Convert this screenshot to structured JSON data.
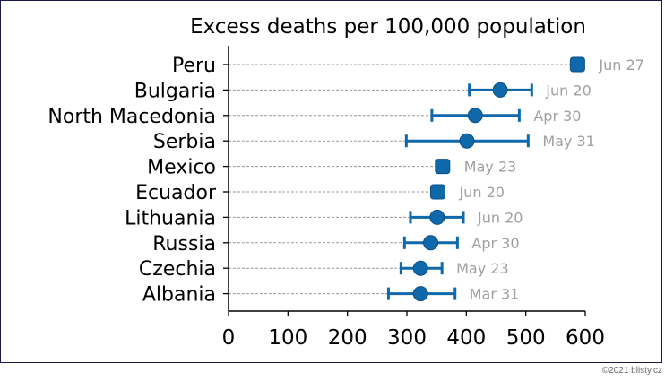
{
  "chart_data": {
    "type": "scatter",
    "title": "Excess deaths per 100,000 population",
    "xlabel": "",
    "ylabel": "",
    "xlim": [
      0,
      600
    ],
    "xticks": [
      0,
      100,
      200,
      300,
      400,
      500,
      600
    ],
    "grid": "horizontal dashed guide lines",
    "series_color": "#0f68aa",
    "date_label_color": "#a0a0a0",
    "rows": [
      {
        "country": "Peru",
        "value": 587,
        "low": 582,
        "high": 592,
        "date": "Jun 27"
      },
      {
        "country": "Bulgaria",
        "value": 457,
        "low": 405,
        "high": 510,
        "date": "Jun 20"
      },
      {
        "country": "North Macedonia",
        "value": 415,
        "low": 342,
        "high": 489,
        "date": "Apr 30"
      },
      {
        "country": "Serbia",
        "value": 401,
        "low": 299,
        "high": 504,
        "date": "May 31"
      },
      {
        "country": "Mexico",
        "value": 360,
        "low": 356,
        "high": 364,
        "date": "May 23"
      },
      {
        "country": "Ecuador",
        "value": 352,
        "low": 348,
        "high": 356,
        "date": "Jun 20"
      },
      {
        "country": "Lithuania",
        "value": 351,
        "low": 306,
        "high": 395,
        "date": "Jun 20"
      },
      {
        "country": "Russia",
        "value": 340,
        "low": 296,
        "high": 385,
        "date": "Apr 30"
      },
      {
        "country": "Czechia",
        "value": 323,
        "low": 290,
        "high": 359,
        "date": "May 23"
      },
      {
        "country": "Albania",
        "value": 323,
        "low": 269,
        "high": 381,
        "date": "Mar 31"
      }
    ]
  },
  "footer": {
    "credit": "©2021 blisty.cz"
  }
}
